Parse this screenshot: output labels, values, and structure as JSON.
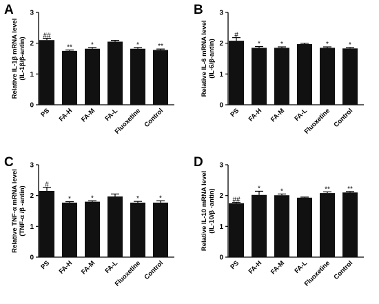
{
  "chart_data": [
    {
      "type": "bar",
      "panel_label": "A",
      "ylabel_line1": "Relative IL-1β mRNA level",
      "ylabel_line2": "(IL-1β/β-antin)",
      "ylim": [
        0,
        3
      ],
      "yticks": [
        "0",
        "1",
        "2",
        "3"
      ],
      "categories": [
        "PS",
        "FA-H",
        "FA-M",
        "FA-L",
        "Fluoxetine",
        "Control"
      ],
      "values": [
        2.1,
        1.75,
        1.82,
        2.05,
        1.82,
        1.78
      ],
      "errors": [
        0.06,
        0.03,
        0.04,
        0.04,
        0.04,
        0.03
      ],
      "significance": [
        "##",
        "**",
        "*",
        "",
        "*",
        "**"
      ],
      "bar_color": "#111111"
    },
    {
      "type": "bar",
      "panel_label": "B",
      "ylabel_line1": "Relative IL-6 mRNA level",
      "ylabel_line2": "(IL-6/β-antin)",
      "ylim": [
        0,
        3
      ],
      "yticks": [
        "0",
        "1",
        "2",
        "3"
      ],
      "categories": [
        "PS",
        "FA-H",
        "FA-M",
        "FA-L",
        "Fluoxetine",
        "Control"
      ],
      "values": [
        2.08,
        1.85,
        1.85,
        1.97,
        1.85,
        1.83
      ],
      "errors": [
        0.1,
        0.04,
        0.03,
        0.03,
        0.03,
        0.03
      ],
      "significance": [
        "#",
        "*",
        "*",
        "",
        "*",
        "*"
      ],
      "bar_color": "#111111"
    },
    {
      "type": "bar",
      "panel_label": "C",
      "ylabel_line1": "Relative TNF-α mRNA level",
      "ylabel_line2": "(TNF-α /β -antin)",
      "ylim": [
        0,
        3
      ],
      "yticks": [
        "0",
        "1",
        "2",
        "3"
      ],
      "categories": [
        "PS",
        "FA-H",
        "FA-M",
        "FA-L",
        "Fluoxetine",
        "Control"
      ],
      "values": [
        2.15,
        1.77,
        1.8,
        1.97,
        1.77,
        1.77
      ],
      "errors": [
        0.12,
        0.03,
        0.03,
        0.08,
        0.04,
        0.06
      ],
      "significance": [
        "#",
        "*",
        "*",
        "",
        "*",
        "*"
      ],
      "bar_color": "#111111"
    },
    {
      "type": "bar",
      "panel_label": "D",
      "ylabel_line1": "Relative IL-10 mRNA level",
      "ylabel_line2": "(IL-10/β -antin)",
      "ylim": [
        0,
        3
      ],
      "yticks": [
        "0",
        "1",
        "2",
        "3"
      ],
      "categories": [
        "PS",
        "FA-H",
        "FA-M",
        "FA-L",
        "Fluoxetine",
        "Control"
      ],
      "values": [
        1.75,
        2.02,
        2.01,
        1.93,
        2.08,
        2.1
      ],
      "errors": [
        0.03,
        0.12,
        0.04,
        0.02,
        0.04,
        0.03
      ],
      "significance": [
        "##",
        "*",
        "*",
        "",
        "**",
        "**"
      ],
      "bar_color": "#111111"
    }
  ]
}
